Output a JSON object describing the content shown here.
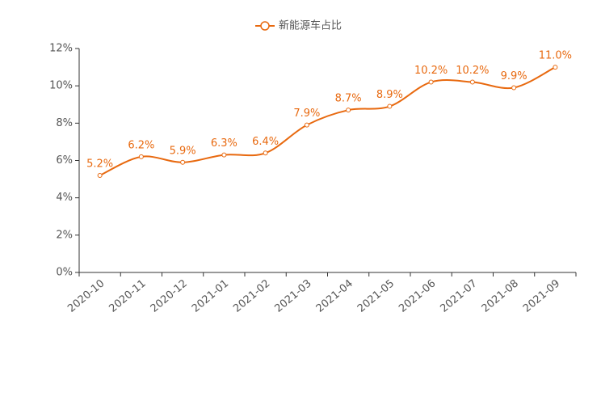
{
  "chart_data": {
    "type": "line",
    "categories": [
      "2020-10",
      "2020-11",
      "2020-12",
      "2021-01",
      "2021-02",
      "2021-03",
      "2021-04",
      "2021-05",
      "2021-06",
      "2021-07",
      "2021-08",
      "2021-09"
    ],
    "series": [
      {
        "name": "新能源车占比",
        "color": "#e8690f",
        "values": [
          5.2,
          6.2,
          5.9,
          6.3,
          6.4,
          7.9,
          8.7,
          8.9,
          10.2,
          10.2,
          9.9,
          11.0
        ],
        "value_labels": [
          "5.2%",
          "6.2%",
          "5.9%",
          "6.3%",
          "6.4%",
          "7.9%",
          "8.7%",
          "8.9%",
          "10.2%",
          "10.2%",
          "9.9%",
          "11.0%"
        ]
      }
    ],
    "ylim": [
      0,
      12
    ],
    "yticks": [
      {
        "value": 0,
        "label": "0%"
      },
      {
        "value": 2,
        "label": "2%"
      },
      {
        "value": 4,
        "label": "4%"
      },
      {
        "value": 6,
        "label": "6%"
      },
      {
        "value": 8,
        "label": "8%"
      },
      {
        "value": 10,
        "label": "10%"
      },
      {
        "value": 12,
        "label": "12%"
      }
    ],
    "legend": "top"
  }
}
